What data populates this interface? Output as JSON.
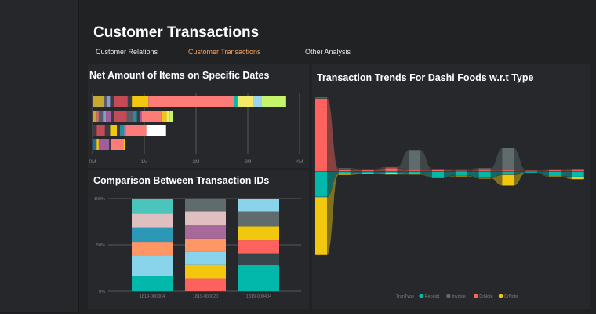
{
  "header": {
    "title": "Customer Transactions"
  },
  "tabs": [
    {
      "label": "Customer Relations",
      "active": false
    },
    {
      "label": "Customer Transactions",
      "active": true
    },
    {
      "label": "Other Analysis",
      "active": false
    }
  ],
  "colors": {
    "background": "#212224",
    "panel": "#26282b",
    "active_tab": "#f3a35d",
    "receipt": "#01b8aa",
    "invoice": "#374649",
    "debitnote": "#fd625e",
    "creditnote": "#f2c80f"
  },
  "chart_data": [
    {
      "id": "net_amount",
      "type": "bar",
      "orientation": "horizontal",
      "stacked": true,
      "title": "Net Amount of Items on Specific Dates",
      "xlim": [
        0,
        4000000
      ],
      "x_ticks": [
        "0M",
        "1M",
        "2M",
        "3M",
        "4M"
      ],
      "grid": true,
      "rows": [
        {
          "segments": [
            {
              "value": 220000,
              "color": "#c8a82e"
            },
            {
              "value": 60000,
              "color": "#5a5c6a"
            },
            {
              "value": 60000,
              "color": "#8a9bd0"
            },
            {
              "value": 80000,
              "color": "#3a3d44"
            },
            {
              "value": 260000,
              "color": "#c44a55"
            },
            {
              "value": 80000,
              "color": "#3a3d44"
            },
            {
              "value": 320000,
              "color": "#f2c80f"
            },
            {
              "value": 1660000,
              "color": "#fd7c78"
            },
            {
              "value": 60000,
              "color": "#01b8aa"
            },
            {
              "value": 300000,
              "color": "#f4ea6a"
            },
            {
              "value": 160000,
              "color": "#9bd3f0"
            },
            {
              "value": 480000,
              "color": "#c5f56a"
            }
          ]
        },
        {
          "segments": [
            {
              "value": 80000,
              "color": "#c8a82e"
            },
            {
              "value": 40000,
              "color": "#d36a72"
            },
            {
              "value": 80000,
              "color": "#5a5c6a"
            },
            {
              "value": 60000,
              "color": "#8a9bd0"
            },
            {
              "value": 100000,
              "color": "#a35d9a"
            },
            {
              "value": 60000,
              "color": "#3a3d44"
            },
            {
              "value": 240000,
              "color": "#c44a55"
            },
            {
              "value": 120000,
              "color": "#5a5c6a"
            },
            {
              "value": 80000,
              "color": "#2d8a9e"
            },
            {
              "value": 60000,
              "color": "#3a3d44"
            },
            {
              "value": 30000,
              "color": "#a35d9a"
            },
            {
              "value": 380000,
              "color": "#fd7c78"
            },
            {
              "value": 100000,
              "color": "#f2c80f"
            },
            {
              "value": 60000,
              "color": "#f4ea6a"
            },
            {
              "value": 60000,
              "color": "#c5f56a"
            }
          ]
        },
        {
          "segments": [
            {
              "value": 80000,
              "color": "#3a3d44"
            },
            {
              "value": 160000,
              "color": "#c44a55"
            },
            {
              "value": 100000,
              "color": "#3a3d44"
            },
            {
              "value": 130000,
              "color": "#f2c80f"
            },
            {
              "value": 60000,
              "color": "#3a3d44"
            },
            {
              "value": 80000,
              "color": "#2d8a9e"
            },
            {
              "value": 30000,
              "color": "#8a9bd0"
            },
            {
              "value": 400000,
              "color": "#fd7c78"
            },
            {
              "value": 380000,
              "color": "#ffffff"
            }
          ]
        },
        {
          "segments": [
            {
              "value": 80000,
              "color": "#1b6ea5"
            },
            {
              "value": 40000,
              "color": "#f2c80f"
            },
            {
              "value": 200000,
              "color": "#a35d9a"
            },
            {
              "value": 40000,
              "color": "#3a3d44"
            },
            {
              "value": 240000,
              "color": "#fd7c78"
            },
            {
              "value": 30000,
              "color": "#f2c80f"
            }
          ]
        }
      ]
    },
    {
      "id": "transaction_ids",
      "type": "bar",
      "stacked": true,
      "percent": true,
      "title": "Comparison Between Transaction IDs",
      "ylim": [
        0,
        100
      ],
      "y_ticks": [
        "0%",
        "50%",
        "100%"
      ],
      "categories": [
        "1819-000004",
        "1819-000020",
        "1819-000404"
      ],
      "grid": true,
      "stacks": [
        [
          {
            "value": 15,
            "color": "#01b8aa"
          },
          {
            "value": 20,
            "color": "#8ad4eb"
          },
          {
            "value": 13,
            "color": "#fe9666"
          },
          {
            "value": 14,
            "color": "#2d97b8"
          },
          {
            "value": 14,
            "color": "#dfbfbf"
          },
          {
            "value": 14,
            "color": "#4ac5bb"
          }
        ],
        [
          {
            "value": 14,
            "color": "#fd625e"
          },
          {
            "value": 15,
            "color": "#f2c80f"
          },
          {
            "value": 14,
            "color": "#8ad4eb"
          },
          {
            "value": 14,
            "color": "#fe9666"
          },
          {
            "value": 14,
            "color": "#a66999"
          },
          {
            "value": 15,
            "color": "#dfbfbf"
          },
          {
            "value": 14,
            "color": "#5f6b6d"
          }
        ],
        [
          {
            "value": 28,
            "color": "#01b8aa"
          },
          {
            "value": 13,
            "color": "#374649"
          },
          {
            "value": 14,
            "color": "#fd625e"
          },
          {
            "value": 15,
            "color": "#f2c80f"
          },
          {
            "value": 16,
            "color": "#5f6b6d"
          },
          {
            "value": 14,
            "color": "#8ad4eb"
          }
        ]
      ]
    },
    {
      "id": "trends",
      "type": "bar",
      "subtype": "ribbon",
      "title": "Transaction Trends For Dashi Foods w.r.t Type",
      "legend_title": "TranType",
      "legend_position": "bottom",
      "legend": [
        {
          "name": "Receipt",
          "color": "#01b8aa"
        },
        {
          "name": "Invoice",
          "color": "#5f6b6d"
        },
        {
          "name": "DrNote",
          "color": "#fd625e"
        },
        {
          "name": "CrNote",
          "color": "#f2c80f"
        }
      ],
      "series": [
        {
          "name": "DrNote",
          "values": [
            20,
            0.4,
            0.2,
            0.8,
            0.2,
            0.4,
            0.1,
            0.2,
            0.2,
            0.1,
            0.2,
            0.2
          ]
        },
        {
          "name": "Invoice",
          "values": [
            0.3,
            0.3,
            0.2,
            0.2,
            5.5,
            0.1,
            0.3,
            0.5,
            6.0,
            0.2,
            0.2,
            0.3
          ]
        },
        {
          "name": "Receipt",
          "values": [
            7,
            0.5,
            0.3,
            0.4,
            0.5,
            1.5,
            1.0,
            1.7,
            0.8,
            0.3,
            1.2,
            1.4
          ]
        },
        {
          "name": "CrNote",
          "values": [
            16,
            0.3,
            0.3,
            0.3,
            0.2,
            0.1,
            0.2,
            0.1,
            3.0,
            0.1,
            0.1,
            0.6
          ]
        }
      ]
    }
  ]
}
